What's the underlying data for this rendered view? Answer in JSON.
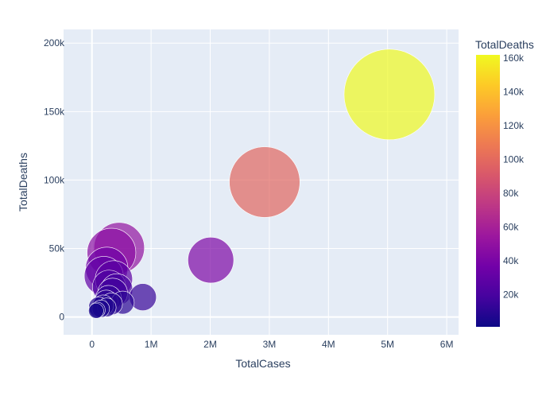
{
  "chart_data": {
    "type": "scatter",
    "xlabel": "TotalCases",
    "ylabel": "TotalDeaths",
    "x_ticks": [
      0,
      1000000,
      2000000,
      3000000,
      4000000,
      5000000,
      6000000
    ],
    "x_tick_labels": [
      "0",
      "1M",
      "2M",
      "3M",
      "4M",
      "5M",
      "6M"
    ],
    "y_ticks": [
      0,
      50000,
      100000,
      150000,
      200000
    ],
    "y_tick_labels": [
      "0",
      "50k",
      "100k",
      "150k",
      "200k"
    ],
    "xlim": [
      -480000,
      6200000
    ],
    "ylim": [
      -13000,
      210000
    ],
    "grid": true,
    "colorbar": {
      "title": "TotalDeaths",
      "range": [
        1000,
        162000
      ],
      "ticks": [
        20000,
        40000,
        60000,
        80000,
        100000,
        120000,
        140000,
        160000
      ],
      "tick_labels": [
        "20k",
        "40k",
        "60k",
        "80k",
        "100k",
        "120k",
        "140k",
        "160k"
      ],
      "colors": [
        "#0d0887",
        "#46039f",
        "#7201a8",
        "#9c179e",
        "#bd3786",
        "#d8576b",
        "#ed7953",
        "#fb9f3a",
        "#fdca26",
        "#f0f921"
      ]
    },
    "points": [
      {
        "x": 5030000,
        "y": 162500
      },
      {
        "x": 2920000,
        "y": 98500
      },
      {
        "x": 2010000,
        "y": 41500
      },
      {
        "x": 460000,
        "y": 50500
      },
      {
        "x": 330000,
        "y": 47000
      },
      {
        "x": 250000,
        "y": 35500
      },
      {
        "x": 370000,
        "y": 27500
      },
      {
        "x": 200000,
        "y": 30000
      },
      {
        "x": 290000,
        "y": 22000
      },
      {
        "x": 420000,
        "y": 20000
      },
      {
        "x": 350000,
        "y": 17500
      },
      {
        "x": 860000,
        "y": 14500
      },
      {
        "x": 280000,
        "y": 13500
      },
      {
        "x": 520000,
        "y": 10500
      },
      {
        "x": 240000,
        "y": 11000
      },
      {
        "x": 330000,
        "y": 9500
      },
      {
        "x": 190000,
        "y": 8500
      },
      {
        "x": 250000,
        "y": 7000
      },
      {
        "x": 110000,
        "y": 7500
      },
      {
        "x": 150000,
        "y": 6000
      },
      {
        "x": 90000,
        "y": 5000
      },
      {
        "x": 70000,
        "y": 4500
      }
    ]
  }
}
